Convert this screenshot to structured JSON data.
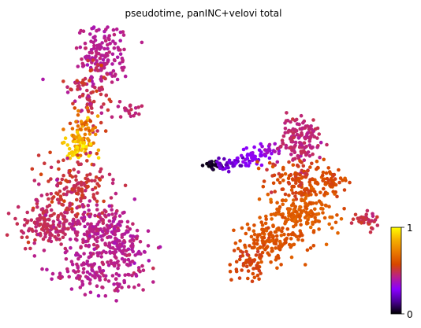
{
  "chart_data": {
    "type": "scatter",
    "title": "pseudotime, panINC+velovi total",
    "xlabel": "",
    "ylabel": "",
    "axes_visible": false,
    "colormap": "gnuplot",
    "colorbar": {
      "min": 0,
      "max": 1,
      "tick_labels": [
        "1",
        "0"
      ],
      "stops": [
        "#000000",
        "#4b0096",
        "#8a00ff",
        "#b9208a",
        "#d64600",
        "#ea7a00",
        "#f5b000",
        "#ffff00"
      ],
      "placement": "right"
    },
    "series": [
      {
        "clusters": [
          {
            "x": 130,
            "y": 70,
            "sx": 18,
            "sy": 22,
            "n": 150,
            "value": 0.42,
            "spread": 0.02
          },
          {
            "x": 115,
            "y": 120,
            "sx": 14,
            "sy": 20,
            "n": 90,
            "value": 0.48,
            "spread": 0.04
          },
          {
            "x": 165,
            "y": 140,
            "sx": 8,
            "sy": 6,
            "n": 20,
            "value": 0.44,
            "spread": 0.02
          },
          {
            "x": 103,
            "y": 170,
            "sx": 10,
            "sy": 14,
            "n": 70,
            "value": 0.75,
            "spread": 0.08
          },
          {
            "x": 98,
            "y": 190,
            "sx": 9,
            "sy": 8,
            "n": 40,
            "value": 0.92,
            "spread": 0.04
          },
          {
            "x": 95,
            "y": 240,
            "sx": 22,
            "sy": 22,
            "n": 150,
            "value": 0.5,
            "spread": 0.03
          },
          {
            "x": 60,
            "y": 285,
            "sx": 20,
            "sy": 14,
            "n": 150,
            "value": 0.47,
            "spread": 0.02
          },
          {
            "x": 125,
            "y": 290,
            "sx": 20,
            "sy": 18,
            "n": 140,
            "value": 0.44,
            "spread": 0.02
          },
          {
            "x": 155,
            "y": 320,
            "sx": 20,
            "sy": 25,
            "n": 150,
            "value": 0.42,
            "spread": 0.02
          },
          {
            "x": 110,
            "y": 345,
            "sx": 25,
            "sy": 15,
            "n": 110,
            "value": 0.43,
            "spread": 0.02
          },
          {
            "x": 270,
            "y": 210,
            "sx": 7,
            "sy": 3,
            "n": 25,
            "value": 0.03,
            "spread": 0.02
          },
          {
            "x": 295,
            "y": 208,
            "sx": 10,
            "sy": 4,
            "n": 35,
            "value": 0.22,
            "spread": 0.03
          },
          {
            "x": 325,
            "y": 198,
            "sx": 11,
            "sy": 5,
            "n": 45,
            "value": 0.3,
            "spread": 0.03
          },
          {
            "x": 345,
            "y": 190,
            "sx": 6,
            "sy": 5,
            "n": 15,
            "value": 0.36,
            "spread": 0.02
          },
          {
            "x": 380,
            "y": 180,
            "sx": 14,
            "sy": 14,
            "n": 140,
            "value": 0.45,
            "spread": 0.02
          },
          {
            "x": 380,
            "y": 230,
            "sx": 20,
            "sy": 14,
            "n": 120,
            "value": 0.56,
            "spread": 0.03
          },
          {
            "x": 418,
            "y": 232,
            "sx": 12,
            "sy": 8,
            "n": 45,
            "value": 0.58,
            "spread": 0.02
          },
          {
            "x": 385,
            "y": 270,
            "sx": 22,
            "sy": 14,
            "n": 160,
            "value": 0.63,
            "spread": 0.02
          },
          {
            "x": 465,
            "y": 280,
            "sx": 12,
            "sy": 5,
            "n": 45,
            "value": 0.49,
            "spread": 0.03
          },
          {
            "x": 345,
            "y": 305,
            "sx": 22,
            "sy": 14,
            "n": 140,
            "value": 0.6,
            "spread": 0.02
          },
          {
            "x": 318,
            "y": 332,
            "sx": 12,
            "sy": 10,
            "n": 60,
            "value": 0.56,
            "spread": 0.02
          }
        ]
      }
    ]
  }
}
